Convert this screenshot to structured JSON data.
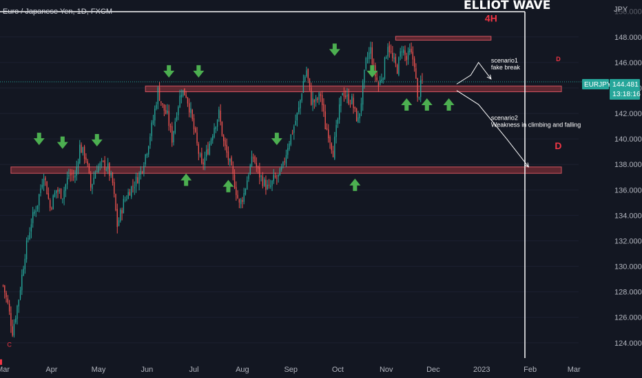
{
  "chart_data": {
    "type": "candlestick",
    "title": "Euro / Japanese Yen, 1D, FXCM",
    "brand": "ELLIOT WAVE",
    "currency": "JPY",
    "symbol": "EURJPY",
    "last_price": "144.481",
    "countdown": "13:18:16",
    "ylim": [
      122.8,
      150.2
    ],
    "y_ticks": [
      "124.000",
      "126.000",
      "128.000",
      "130.000",
      "132.000",
      "134.000",
      "136.000",
      "138.000",
      "140.000",
      "142.000",
      "144.000",
      "146.000",
      "148.000"
    ],
    "y_top_label": "150.000",
    "x_labels": [
      {
        "label": "Mar",
        "day": 0
      },
      {
        "label": "Apr",
        "day": 31
      },
      {
        "label": "May",
        "day": 61
      },
      {
        "label": "Jun",
        "day": 92
      },
      {
        "label": "Jul",
        "day": 122
      },
      {
        "label": "Aug",
        "day": 153
      },
      {
        "label": "Sep",
        "day": 184
      },
      {
        "label": "Oct",
        "day": 214
      },
      {
        "label": "Nov",
        "day": 245
      },
      {
        "label": "Dec",
        "day": 275
      },
      {
        "label": "2023",
        "day": 306
      },
      {
        "label": "Feb",
        "day": 337
      },
      {
        "label": "Mar",
        "day": 365
      }
    ],
    "x_range_days": [
      -2,
      368
    ],
    "price_path": [
      [
        0,
        128.5
      ],
      [
        3,
        127.0
      ],
      [
        6,
        124.9
      ],
      [
        10,
        127.5
      ],
      [
        14,
        131.0
      ],
      [
        18,
        133.5
      ],
      [
        22,
        135.0
      ],
      [
        26,
        137.3
      ],
      [
        30,
        134.6
      ],
      [
        34,
        136.0
      ],
      [
        38,
        135.6
      ],
      [
        42,
        137.2
      ],
      [
        46,
        137.0
      ],
      [
        49,
        139.4
      ],
      [
        53,
        138.5
      ],
      [
        56,
        136.2
      ],
      [
        60,
        137.8
      ],
      [
        64,
        138.0
      ],
      [
        67,
        137.7
      ],
      [
        70,
        136.5
      ],
      [
        73,
        133.2
      ],
      [
        77,
        135.0
      ],
      [
        81,
        136.0
      ],
      [
        84,
        136.5
      ],
      [
        88,
        137.4
      ],
      [
        92,
        139.2
      ],
      [
        96,
        141.5
      ],
      [
        99,
        143.8
      ],
      [
        102,
        142.5
      ],
      [
        105,
        141.8
      ],
      [
        108,
        140.0
      ],
      [
        111,
        142.2
      ],
      [
        114,
        143.8
      ],
      [
        117,
        143.5
      ],
      [
        120,
        142.0
      ],
      [
        124,
        139.5
      ],
      [
        127,
        137.8
      ],
      [
        131,
        139.2
      ],
      [
        135,
        141.0
      ],
      [
        138,
        142.0
      ],
      [
        141,
        139.7
      ],
      [
        145,
        138.0
      ],
      [
        148,
        136.5
      ],
      [
        151,
        134.8
      ],
      [
        154,
        135.7
      ],
      [
        157,
        137.4
      ],
      [
        160,
        138.6
      ],
      [
        163,
        137.4
      ],
      [
        167,
        136.5
      ],
      [
        170,
        136.0
      ],
      [
        173,
        136.8
      ],
      [
        176,
        137.0
      ],
      [
        179,
        137.8
      ],
      [
        182,
        139.5
      ],
      [
        186,
        141.0
      ],
      [
        189,
        142.3
      ],
      [
        192,
        144.5
      ],
      [
        194,
        145.4
      ],
      [
        197,
        143.0
      ],
      [
        200,
        142.9
      ],
      [
        203,
        143.5
      ],
      [
        206,
        141.0
      ],
      [
        208,
        140.5
      ],
      [
        211,
        139.0
      ],
      [
        214,
        141.5
      ],
      [
        217,
        143.8
      ],
      [
        220,
        143.2
      ],
      [
        223,
        143.0
      ],
      [
        225,
        142.0
      ],
      [
        227,
        141.4
      ],
      [
        229,
        143.0
      ],
      [
        232,
        146.0
      ],
      [
        235,
        147.0
      ],
      [
        237,
        145.4
      ],
      [
        240,
        144.2
      ],
      [
        243,
        145.2
      ],
      [
        246,
        147.5
      ],
      [
        249,
        146.2
      ],
      [
        252,
        145.5
      ],
      [
        255,
        147.2
      ],
      [
        258,
        146.2
      ],
      [
        260,
        146.8
      ],
      [
        263,
        146.0
      ],
      [
        265,
        143.0
      ],
      [
        267,
        144.2
      ],
      [
        268,
        144.48
      ]
    ],
    "zones": [
      {
        "name": "D",
        "y_low": 143.7,
        "y_high": 144.15,
        "x_start_day": 91,
        "x_end_day": 357,
        "label_day": 355,
        "label_y": 146.1,
        "label_size": 9
      },
      {
        "name": "D",
        "y_low": 137.3,
        "y_high": 137.8,
        "x_start_day": 5,
        "x_end_day": 357,
        "label_day": 355,
        "label_y": 139.2,
        "label_size": 14
      },
      {
        "name": "4H",
        "y_low": 147.75,
        "y_high": 148.05,
        "x_start_day": 251,
        "x_end_day": 312,
        "label_day": 312,
        "label_y": 149.2,
        "label_size": 14
      }
    ],
    "down_arrows": [
      {
        "day": 23,
        "price": 140.0
      },
      {
        "day": 38,
        "price": 139.7
      },
      {
        "day": 60,
        "price": 139.9
      },
      {
        "day": 106,
        "price": 145.3
      },
      {
        "day": 125,
        "price": 145.3
      },
      {
        "day": 175,
        "price": 140.0
      },
      {
        "day": 212,
        "price": 147.0
      },
      {
        "day": 236,
        "price": 145.3
      }
    ],
    "up_arrows": [
      {
        "day": 117,
        "price": 136.8
      },
      {
        "day": 144,
        "price": 136.3
      },
      {
        "day": 225,
        "price": 136.4
      },
      {
        "day": 258,
        "price": 142.7
      },
      {
        "day": 271,
        "price": 142.7
      },
      {
        "day": 285,
        "price": 142.7
      }
    ],
    "wave_labels": [
      {
        "text": "C",
        "day": 4,
        "price": 123.7
      }
    ],
    "scenario1": {
      "line1": "scenario1",
      "line2": "fake break",
      "day": 312,
      "price": 146.0
    },
    "scenario2": {
      "line1": "scenario2",
      "line2": "Weakness in climbing and falling",
      "day": 312,
      "price": 141.5
    },
    "scenario_paths": [
      [
        [
          290,
          144.3
        ],
        [
          299,
          145.0
        ],
        [
          304,
          146.0
        ],
        [
          312,
          144.7
        ]
      ],
      [
        [
          290,
          143.8
        ],
        [
          304,
          142.7
        ],
        [
          322,
          140.0
        ],
        [
          336,
          137.8
        ]
      ]
    ],
    "colors": {
      "background": "#131722",
      "bull": "#26a69a",
      "bear": "#ef5350",
      "zone_fill": "#6b2a33",
      "zone_stroke": "#d35460",
      "arrow": "#4caf50",
      "price_tag": "#26a69a",
      "label_red": "#f23645"
    }
  }
}
